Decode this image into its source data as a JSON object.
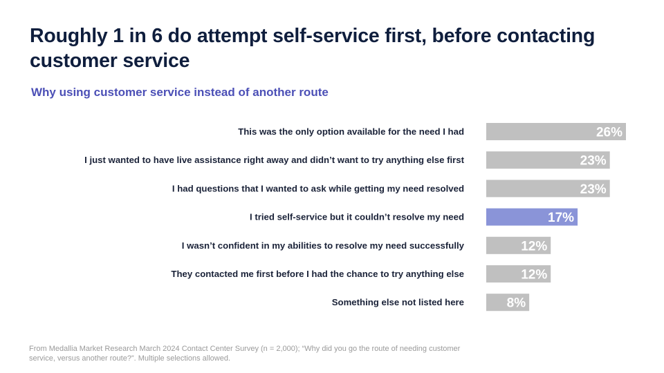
{
  "slide": {
    "title": "Roughly 1 in 6 do attempt self-service first, before contacting customer service",
    "subtitle": "Why using customer service instead of another route",
    "footnote": "From Medallia Market Research March 2024 Contact Center Survey (n = 2,000); “Why did you go the route of needing customer service, versus another route?”.  Multiple selections allowed."
  },
  "colors": {
    "bar_default": "#c0c0c0",
    "bar_highlight": "#8a94d8",
    "label_text": "#1a2238",
    "value_text": "#ffffff"
  },
  "chart_data": {
    "type": "bar",
    "orientation": "horizontal",
    "title": "Why using customer service instead of another route",
    "xlabel": "",
    "ylabel": "",
    "xlim": [
      0,
      26
    ],
    "grid": false,
    "legend": "none",
    "value_suffix": "%",
    "categories": [
      "This was the only option available for the need I had",
      "I just wanted to have live assistance right away and didn’t want to try anything else first",
      "I had questions that I wanted to ask while getting my need resolved",
      "I tried self-service but it couldn’t resolve my need",
      "I wasn’t confident in my abilities to resolve my need successfully",
      "They contacted me first before I had the chance to try anything else",
      "Something else not listed here"
    ],
    "values": [
      26,
      23,
      23,
      17,
      12,
      12,
      8
    ],
    "data_labels": [
      "26%",
      "23%",
      "23%",
      "17%",
      "12%",
      "12%",
      "8%"
    ],
    "highlighted": [
      false,
      false,
      false,
      true,
      false,
      false,
      false
    ]
  }
}
